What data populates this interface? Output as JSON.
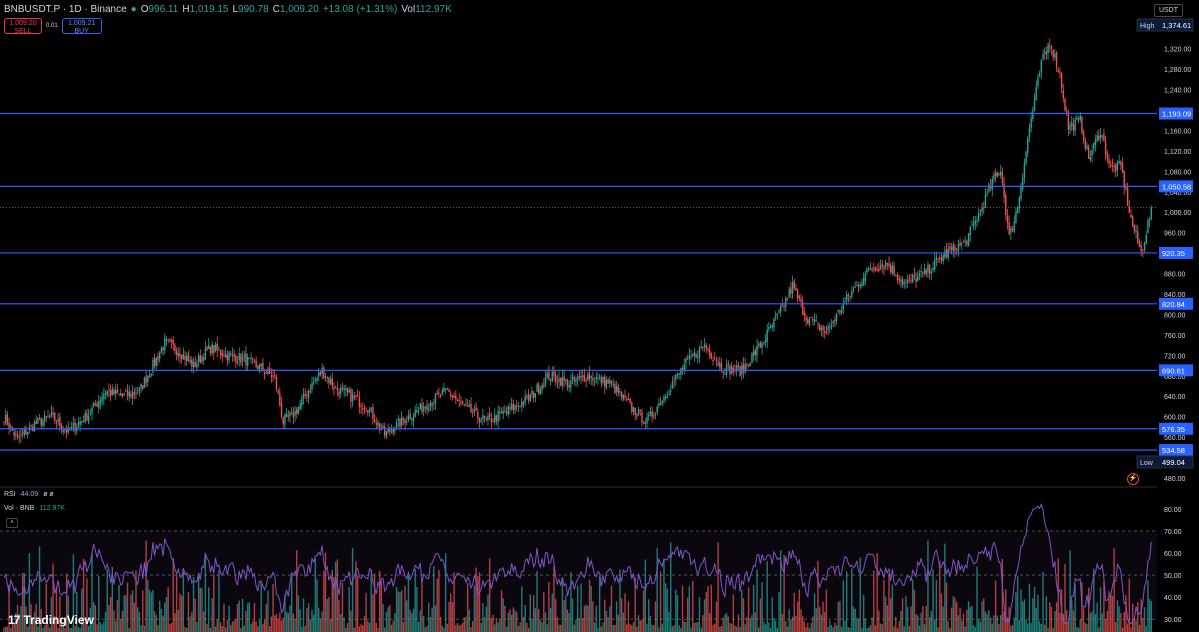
{
  "header": {
    "symbol": "BNBUSDT.P · 1D · Binance",
    "ohlc": [
      {
        "k": "O",
        "v": "996.11"
      },
      {
        "k": "H",
        "v": "1,019.15"
      },
      {
        "k": "L",
        "v": "990.78"
      },
      {
        "k": "C",
        "v": "1,009.20"
      },
      {
        "k": "",
        "v": "+13.08 (+1.31%)"
      },
      {
        "k": "Vol",
        "v": "112.97K"
      }
    ]
  },
  "trade": {
    "sell_price": "1,009.20",
    "sell_label": "SELL",
    "spread": "0.01",
    "buy_price": "1,009.21",
    "buy_label": "BUY"
  },
  "currency": "USDT",
  "rsi": {
    "label": "RSI",
    "value": "44.09",
    "extra": "ø ø"
  },
  "volume": {
    "label": "Vol · BNB",
    "value": "112.97K"
  },
  "brand": "TradingView",
  "colors": {
    "up": "#26a69a",
    "down": "#ef5350",
    "level": "#2962ff",
    "rsi": "#7e57c2",
    "bg": "#000000",
    "grid": "#1e222d"
  },
  "chart_data": {
    "type": "candlestick",
    "y_axis_ticks": [
      "1,360.00",
      "1,320.00",
      "1,280.00",
      "1,240.00",
      "1,200.00",
      "1,160.00",
      "1,120.00",
      "1,080.00",
      "1,040.00",
      "1,000.00",
      "960.00",
      "920.00",
      "880.00",
      "840.00",
      "800.00",
      "760.00",
      "720.00",
      "680.00",
      "640.00",
      "600.00",
      "560.00",
      "520.00",
      "480.00"
    ],
    "ylim": [
      480,
      1380
    ],
    "high_label": "High",
    "high_value": "1,374.61",
    "low_label": "Low",
    "low_value": "499.04",
    "last_price": 1009.2,
    "levels": [
      {
        "label": "1,193.09",
        "value": 1193.09
      },
      {
        "label": "1,050.58",
        "value": 1050.58
      },
      {
        "label": "920.35",
        "value": 920.35
      },
      {
        "label": "820.84",
        "value": 820.84
      },
      {
        "label": "690.61",
        "value": 690.61
      },
      {
        "label": "576.35",
        "value": 576.35
      },
      {
        "label": "534.58",
        "value": 534.58
      }
    ],
    "anchors": [
      [
        0,
        600
      ],
      [
        8,
        555
      ],
      [
        18,
        585
      ],
      [
        28,
        600
      ],
      [
        38,
        570
      ],
      [
        50,
        605
      ],
      [
        60,
        650
      ],
      [
        70,
        640
      ],
      [
        80,
        650
      ],
      [
        88,
        700
      ],
      [
        95,
        745
      ],
      [
        103,
        730
      ],
      [
        112,
        700
      ],
      [
        122,
        735
      ],
      [
        132,
        720
      ],
      [
        142,
        712
      ],
      [
        152,
        695
      ],
      [
        160,
        675
      ],
      [
        165,
        590
      ],
      [
        172,
        608
      ],
      [
        180,
        652
      ],
      [
        188,
        690
      ],
      [
        196,
        655
      ],
      [
        205,
        640
      ],
      [
        215,
        618
      ],
      [
        225,
        565
      ],
      [
        238,
        598
      ],
      [
        250,
        625
      ],
      [
        262,
        650
      ],
      [
        272,
        618
      ],
      [
        285,
        590
      ],
      [
        298,
        612
      ],
      [
        310,
        635
      ],
      [
        322,
        680
      ],
      [
        334,
        665
      ],
      [
        345,
        680
      ],
      [
        358,
        665
      ],
      [
        370,
        620
      ],
      [
        380,
        590
      ],
      [
        390,
        640
      ],
      [
        402,
        700
      ],
      [
        414,
        740
      ],
      [
        425,
        695
      ],
      [
        436,
        690
      ],
      [
        448,
        745
      ],
      [
        458,
        800
      ],
      [
        466,
        855
      ],
      [
        474,
        795
      ],
      [
        486,
        765
      ],
      [
        498,
        830
      ],
      [
        512,
        890
      ],
      [
        522,
        900
      ],
      [
        532,
        860
      ],
      [
        544,
        880
      ],
      [
        556,
        918
      ],
      [
        568,
        940
      ],
      [
        578,
        1010
      ],
      [
        584,
        1060
      ],
      [
        589,
        1085
      ],
      [
        594,
        950
      ],
      [
        599,
        1010
      ],
      [
        606,
        1165
      ],
      [
        613,
        1290
      ],
      [
        618,
        1335
      ],
      [
        624,
        1270
      ],
      [
        629,
        1165
      ],
      [
        636,
        1180
      ],
      [
        641,
        1105
      ],
      [
        648,
        1160
      ],
      [
        654,
        1085
      ],
      [
        660,
        1090
      ],
      [
        666,
        985
      ],
      [
        672,
        920
      ],
      [
        678,
        1005
      ]
    ],
    "rsi_ticks": [
      "80.00",
      "70.00",
      "60.00",
      "50.00",
      "40.00",
      "30.00"
    ],
    "rsi_ylim": [
      26,
      84
    ],
    "rsi_overbought": 70,
    "rsi_oversold": 30
  }
}
